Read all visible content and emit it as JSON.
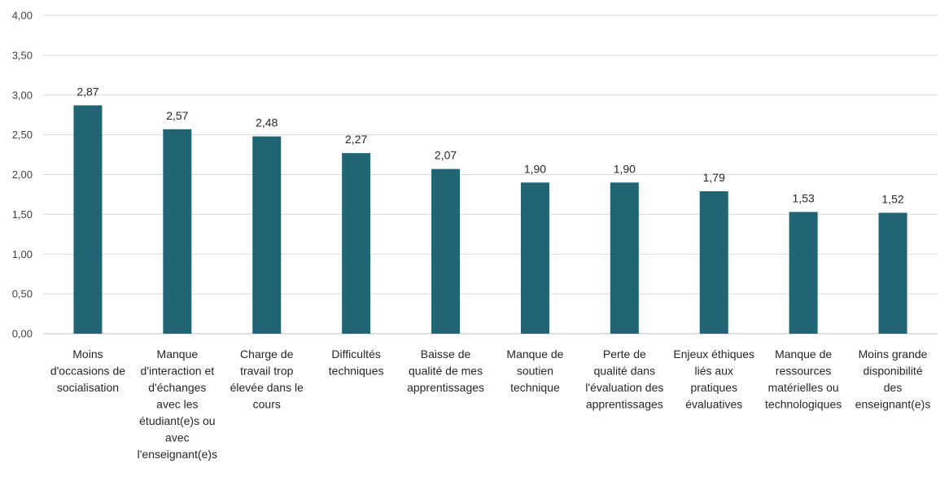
{
  "chart_data": {
    "type": "bar",
    "title": "",
    "xlabel": "",
    "ylabel": "",
    "ylim": [
      0,
      4
    ],
    "yticks": [
      "0,00",
      "0,50",
      "1,00",
      "1,50",
      "2,00",
      "2,50",
      "3,00",
      "3,50",
      "4,00"
    ],
    "grid": true,
    "bar_color": "#216474",
    "categories": [
      [
        "Moins",
        "d'occasions de",
        "socialisation"
      ],
      [
        "Manque",
        "d'interaction et",
        "d'échanges",
        "avec les",
        "étudiant(e)s ou",
        "avec",
        "l'enseignant(e)s"
      ],
      [
        "Charge de",
        "travail trop",
        "élevée dans le",
        "cours"
      ],
      [
        "Difficultés",
        "techniques"
      ],
      [
        "Baisse de",
        "qualité de mes",
        "apprentissages"
      ],
      [
        "Manque de",
        "soutien",
        "technique"
      ],
      [
        "Perte de",
        "qualité dans",
        "l'évaluation des",
        "apprentissages"
      ],
      [
        "Enjeux éthiques",
        "liés aux",
        "pratiques",
        "évaluatives"
      ],
      [
        "Manque de",
        "ressources",
        "matérielles ou",
        "technologiques"
      ],
      [
        "Moins grande",
        "disponibilité",
        "des",
        "enseignant(e)s"
      ]
    ],
    "values": [
      2.87,
      2.57,
      2.48,
      2.27,
      2.07,
      1.9,
      1.9,
      1.79,
      1.53,
      1.52
    ],
    "data_labels": [
      "2,87",
      "2,57",
      "2,48",
      "2,27",
      "2,07",
      "1,90",
      "1,90",
      "1,79",
      "1,53",
      "1,52"
    ]
  }
}
